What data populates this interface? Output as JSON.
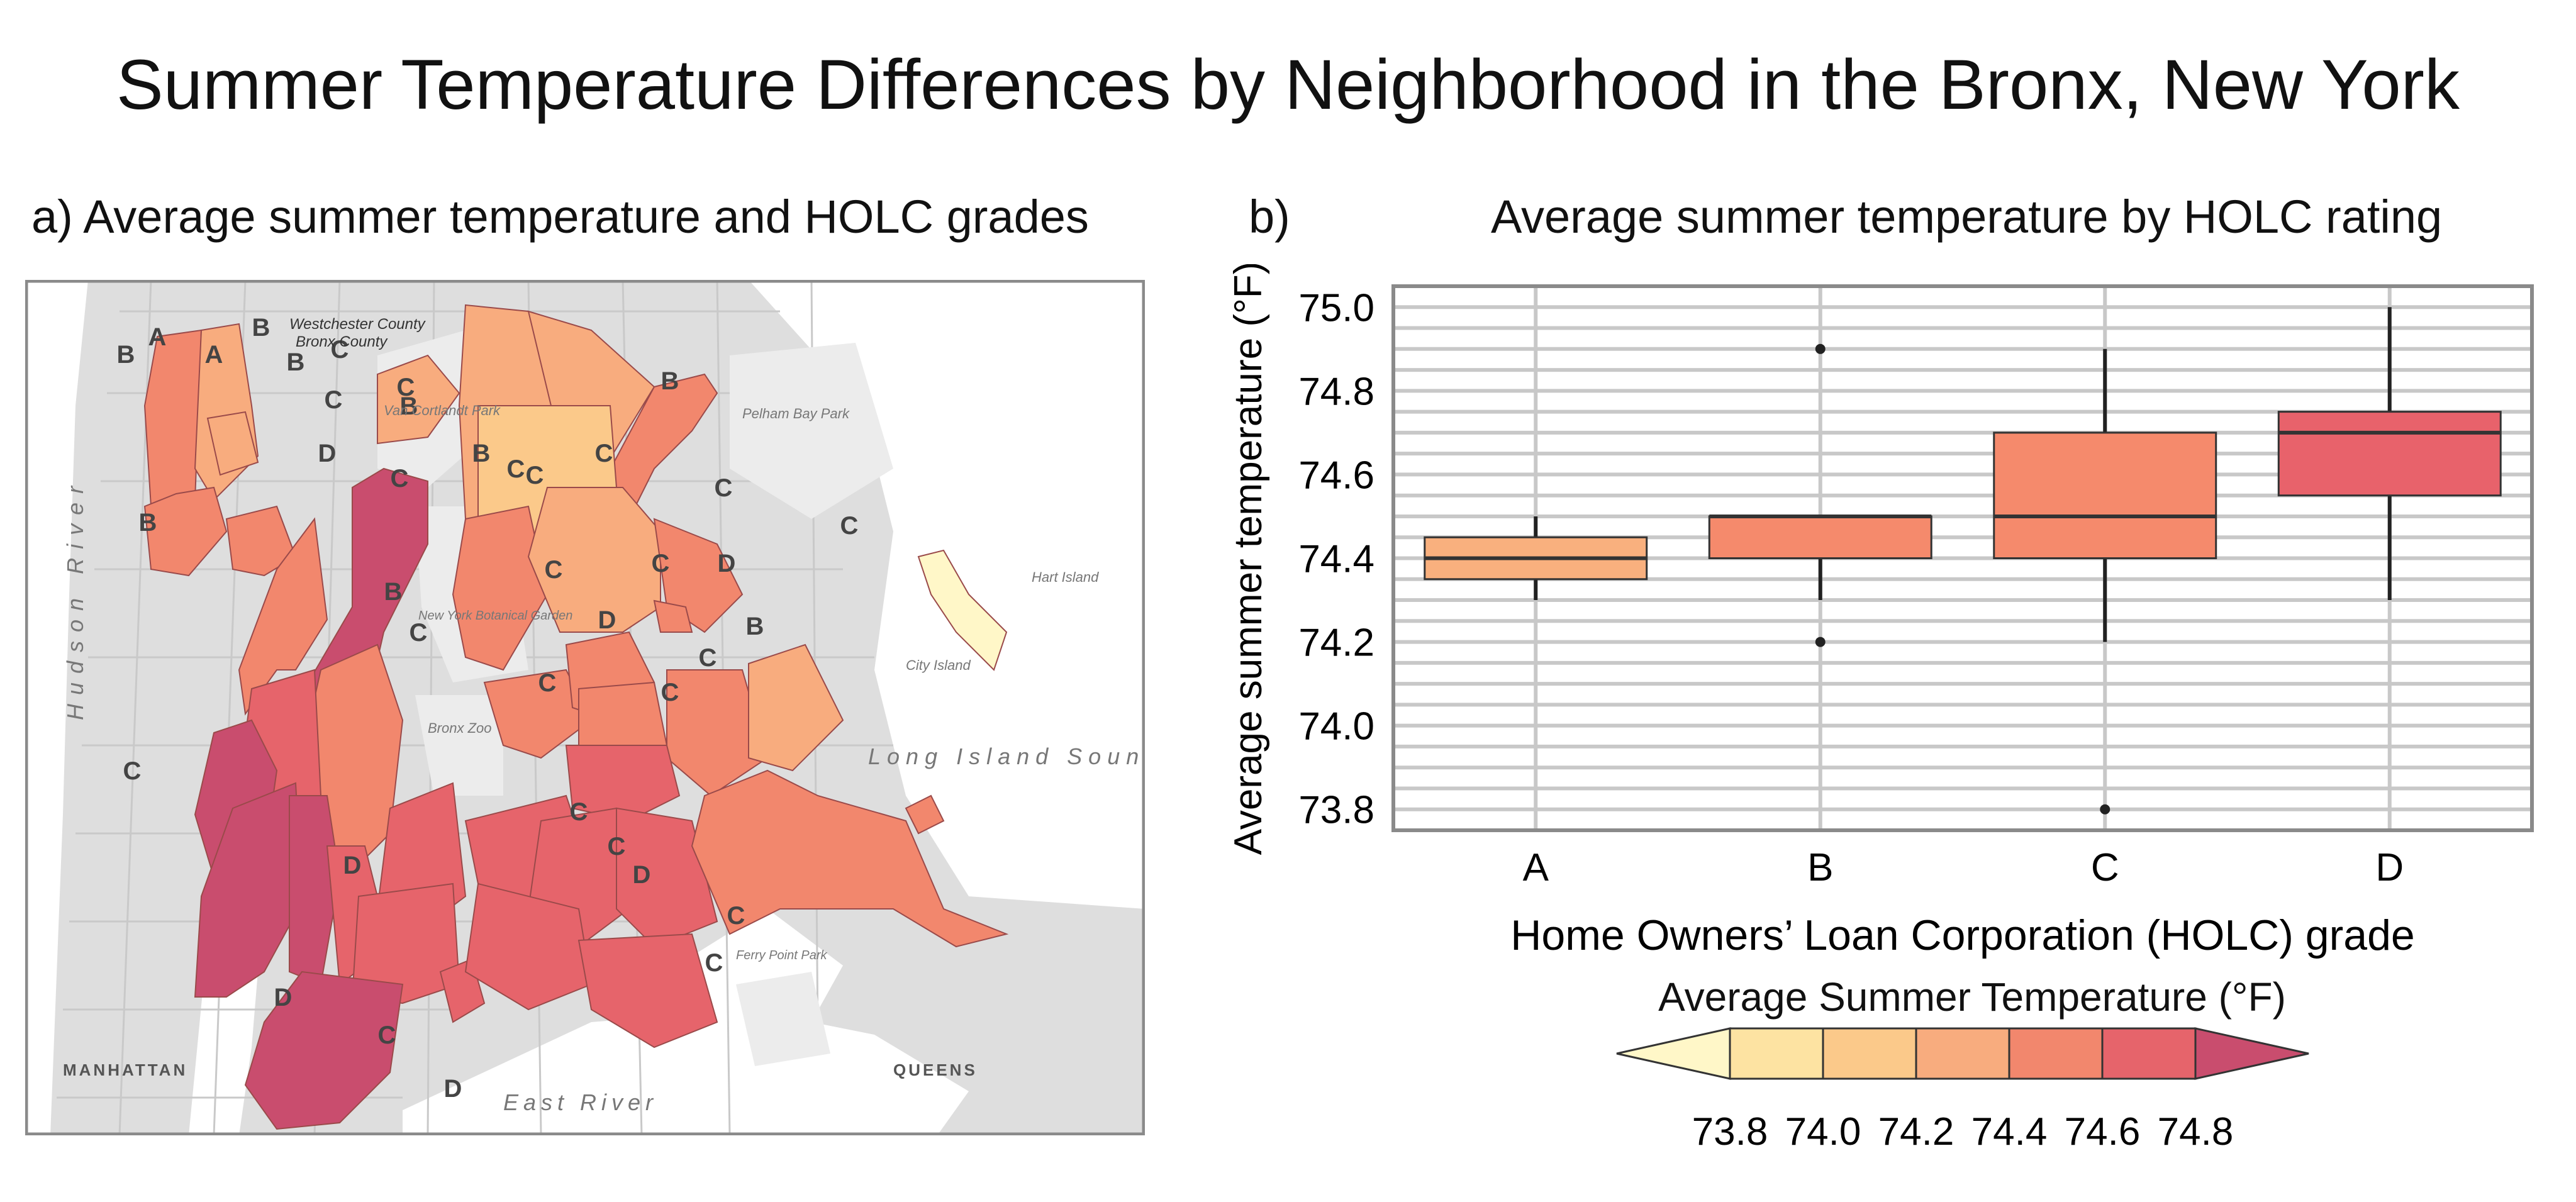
{
  "title": "Summer Temperature Differences by Neighborhood in the Bronx, New York",
  "panel_a": {
    "title": "a) Average summer temperature and HOLC grades",
    "place_labels": {
      "hudson_river": "Hudson River",
      "westchester_county": "Westchester County",
      "bronx_county": "Bronx County",
      "van_cortlandt_park": "Van Cortlandt Park",
      "pelham_bay_park": "Pelham Bay Park",
      "hart_island": "Hart Island",
      "city_island": "City Island",
      "ny_botanical_garden": "New York Botanical Garden",
      "bronx_zoo": "Bronx Zoo",
      "long_island_sound": "Long Island Sound",
      "ferry_point_park": "Ferry Point Park",
      "east_river": "East River",
      "manhattan": "MANHATTAN",
      "queens": "QUEENS"
    },
    "neighborhood_grades": [
      "A",
      "A",
      "B",
      "B",
      "B",
      "C",
      "B",
      "B",
      "B",
      "C",
      "C",
      "D",
      "C",
      "C",
      "B",
      "C",
      "C",
      "B",
      "C",
      "C",
      "C",
      "D",
      "B",
      "C",
      "D",
      "C",
      "C",
      "C",
      "C",
      "C",
      "C",
      "D",
      "C",
      "D",
      "C",
      "C",
      "D",
      "C",
      "D"
    ]
  },
  "panel_b": {
    "letter": "b)",
    "title": "Average summer temperature by HOLC rating"
  },
  "chart_data": {
    "type": "box",
    "title": "Average summer temperature by HOLC rating",
    "xlabel": "Home Owners’ Loan Corporation (HOLC) grade",
    "ylabel": "Average summer temperature (°F)",
    "ylim": [
      73.75,
      75.05
    ],
    "yticks": [
      "73.8",
      "74.0",
      "74.2",
      "74.4",
      "74.6",
      "74.8",
      "75.0"
    ],
    "grid": true,
    "categories": [
      "A",
      "B",
      "C",
      "D"
    ],
    "boxes": [
      {
        "category": "A",
        "whisker_low": 74.3,
        "q1": 74.35,
        "median": 74.4,
        "q3": 74.45,
        "whisker_high": 74.5,
        "outliers": [],
        "color": "#f9b07e"
      },
      {
        "category": "B",
        "whisker_low": 74.3,
        "q1": 74.4,
        "median": 74.5,
        "q3": 74.5,
        "whisker_high": 74.5,
        "outliers": [
          74.9,
          74.2
        ],
        "color": "#f58a6c"
      },
      {
        "category": "C",
        "whisker_low": 74.2,
        "q1": 74.4,
        "median": 74.5,
        "q3": 74.7,
        "whisker_high": 74.9,
        "outliers": [
          73.8
        ],
        "color": "#f58a6c"
      },
      {
        "category": "D",
        "whisker_low": 74.3,
        "q1": 74.55,
        "median": 74.7,
        "q3": 74.75,
        "whisker_high": 75.0,
        "outliers": [],
        "color": "#e8626b"
      }
    ]
  },
  "colorbar": {
    "title": "Average Summer Temperature (°F)",
    "tick_labels": [
      "73.8",
      "74.0",
      "74.2",
      "74.4",
      "74.6",
      "74.8"
    ],
    "colors": [
      "#fff7c8",
      "#fde3a2",
      "#fbc98a",
      "#f8ac7e",
      "#f2876d",
      "#e6646b",
      "#c94d6e"
    ]
  }
}
